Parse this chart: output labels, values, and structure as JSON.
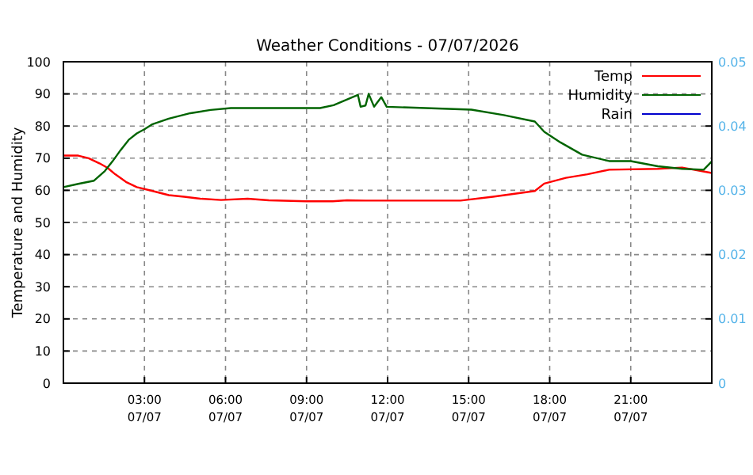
{
  "chart_data": {
    "type": "line",
    "title": "Weather Conditions - 07/07/2026",
    "ylabel": "Temperature and Humidity",
    "xlim": [
      "2026-07-07T00:00",
      "2026-07-08T00:00"
    ],
    "xticks": [
      {
        "value": "2026-07-07T03:00",
        "label": "03:00\n07/07"
      },
      {
        "value": "2026-07-07T06:00",
        "label": "06:00\n07/07"
      },
      {
        "value": "2026-07-07T09:00",
        "label": "09:00\n07/07"
      },
      {
        "value": "2026-07-07T12:00",
        "label": "12:00\n07/07"
      },
      {
        "value": "2026-07-07T15:00",
        "label": "15:00\n07/07"
      },
      {
        "value": "2026-07-07T18:00",
        "label": "18:00\n07/07"
      },
      {
        "value": "2026-07-07T21:00",
        "label": "21:00\n07/07"
      }
    ],
    "ylim": [
      0,
      100
    ],
    "yticks": [
      0,
      10,
      20,
      30,
      40,
      50,
      60,
      70,
      80,
      90,
      100
    ],
    "y2lim": [
      0,
      0.05
    ],
    "y2ticks": [
      0,
      0.01,
      0.02,
      0.03,
      0.04,
      0.05
    ],
    "grid": true,
    "legend": "top right",
    "line_style": "solid",
    "marker": "none",
    "series": [
      {
        "name": "Temp",
        "color": "#ff0000",
        "x": [
          "2026-07-07T00:00",
          "2026-07-07T00:33",
          "2026-07-07T00:56",
          "2026-07-07T01:20",
          "2026-07-07T01:38",
          "2026-07-07T01:55",
          "2026-07-07T02:19",
          "2026-07-07T02:43",
          "2026-07-07T03:18",
          "2026-07-07T03:54",
          "2026-07-07T04:28",
          "2026-07-07T05:04",
          "2026-07-07T05:50",
          "2026-07-07T06:49",
          "2026-07-07T07:36",
          "2026-07-07T08:59",
          "2026-07-07T09:58",
          "2026-07-07T10:30",
          "2026-07-07T11:11",
          "2026-07-07T14:42",
          "2026-07-07T15:54",
          "2026-07-07T17:27",
          "2026-07-07T17:48",
          "2026-07-07T18:36",
          "2026-07-07T19:24",
          "2026-07-07T20:12",
          "2026-07-07T22:00",
          "2026-07-07T22:54",
          "2026-07-08T00:00"
        ],
        "values": [
          70.8,
          70.8,
          70,
          68.4,
          67,
          65,
          62.6,
          61,
          59.8,
          58.5,
          58,
          57.4,
          57,
          57.4,
          56.9,
          56.6,
          56.6,
          56.9,
          56.8,
          56.8,
          58,
          59.8,
          62.1,
          63.9,
          65,
          66.4,
          66.7,
          67.1,
          65.4
        ]
      },
      {
        "name": "Humidity",
        "color": "#006400",
        "x": [
          "2026-07-07T00:00",
          "2026-07-07T00:33",
          "2026-07-07T01:08",
          "2026-07-07T01:32",
          "2026-07-07T01:49",
          "2026-07-07T02:07",
          "2026-07-07T02:25",
          "2026-07-07T02:43",
          "2026-07-07T03:00",
          "2026-07-07T03:18",
          "2026-07-07T03:54",
          "2026-07-07T04:42",
          "2026-07-07T05:27",
          "2026-07-07T06:12",
          "2026-07-07T08:00",
          "2026-07-07T09:30",
          "2026-07-07T10:00",
          "2026-07-07T10:54",
          "2026-07-07T11:00",
          "2026-07-07T11:11",
          "2026-07-07T11:18",
          "2026-07-07T11:30",
          "2026-07-07T11:46",
          "2026-07-07T11:58",
          "2026-07-07T15:06",
          "2026-07-07T16:18",
          "2026-07-07T17:27",
          "2026-07-07T17:48",
          "2026-07-07T18:24",
          "2026-07-07T19:12",
          "2026-07-07T20:12",
          "2026-07-07T21:00",
          "2026-07-07T22:00",
          "2026-07-07T22:54",
          "2026-07-07T23:42",
          "2026-07-08T00:00"
        ],
        "values": [
          61,
          62,
          63,
          66,
          69,
          72.5,
          75.7,
          77.7,
          79,
          80.6,
          82.3,
          84,
          85,
          85.6,
          85.6,
          85.6,
          86.5,
          89.7,
          86,
          86.4,
          90,
          86,
          89,
          86,
          85.1,
          83.4,
          81.4,
          78.2,
          74.9,
          71.1,
          69.1,
          69.1,
          67.5,
          66.7,
          66.4,
          69
        ]
      },
      {
        "name": "Rain",
        "color": "#0000cc",
        "values": [
          null
        ]
      }
    ]
  }
}
